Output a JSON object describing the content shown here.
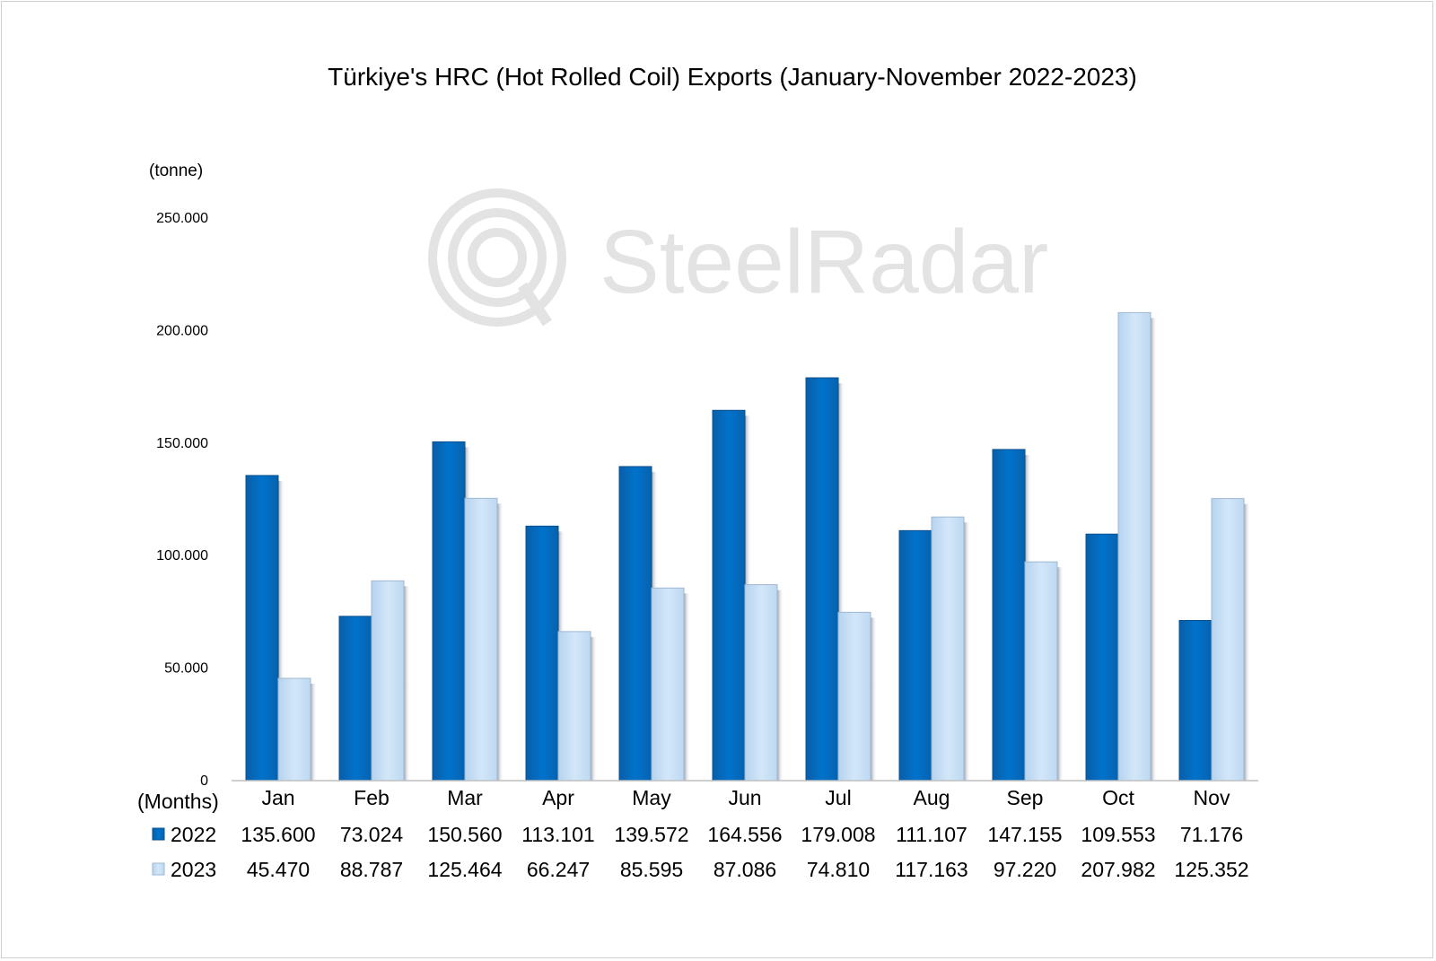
{
  "watermark": "SteelRadar",
  "chart_data": {
    "type": "bar",
    "title": "Türkiye's HRC (Hot Rolled Coil) Exports (January-November  2022-2023)",
    "ylabel": "(tonne)",
    "xlabel": "(Months)",
    "ylim": [
      0,
      250000
    ],
    "yticks": [
      0,
      50000,
      100000,
      150000,
      200000,
      250000
    ],
    "ytick_labels": [
      "0",
      "50.000",
      "100.000",
      "150.000",
      "200.000",
      "250.000"
    ],
    "categories": [
      "Jan",
      "Feb",
      "Mar",
      "Apr",
      "May",
      "Jun",
      "Jul",
      "Aug",
      "Sep",
      "Oct",
      "Nov"
    ],
    "grid": false,
    "legend": "data-table",
    "series": [
      {
        "name": "2022",
        "color": "#0070C8",
        "values": [
          135600,
          73024,
          150560,
          113101,
          139572,
          164556,
          179008,
          111107,
          147155,
          109553,
          71176
        ],
        "labels": [
          "135.600",
          "73.024",
          "150.560",
          "113.101",
          "139.572",
          "164.556",
          "179.008",
          "111.107",
          "147.155",
          "109.553",
          "71.176"
        ]
      },
      {
        "name": "2023",
        "color": "#CCE2F7",
        "values": [
          45470,
          88787,
          125464,
          66247,
          85595,
          87086,
          74810,
          117163,
          97220,
          207982,
          125352
        ],
        "labels": [
          "45.470",
          "88.787",
          "125.464",
          "66.247",
          "85.595",
          "87.086",
          "74.810",
          "117.163",
          "97.220",
          "207.982",
          "125.352"
        ]
      }
    ]
  }
}
